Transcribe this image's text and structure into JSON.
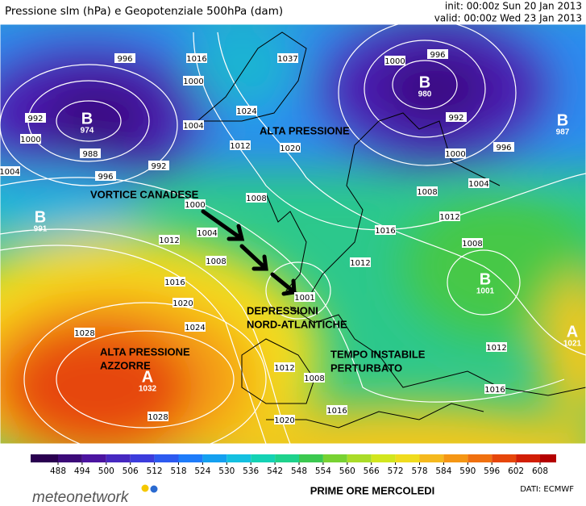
{
  "header": {
    "title": "Pressione slm (hPa) e Geopotenziale 500hPa (dam)",
    "init": "init: 00:00z Sun 20 Jan 2013",
    "valid": "valid: 00:00z Wed 23 Jan 2013"
  },
  "map": {
    "annotations": [
      [
        "ALTA PRESSIONE"
      ],
      [
        "VORTICE CANADESE"
      ],
      [
        "DEPRESSIONI",
        "NORD-ATLANTICHE"
      ],
      [
        "ALTA PRESSIONE",
        "AZZORRE"
      ],
      [
        "TEMPO INSTABILE",
        "PERTURBATO"
      ]
    ],
    "centers": [
      {
        "letter": "B",
        "value": "974"
      },
      {
        "letter": "B",
        "value": "991"
      },
      {
        "letter": "B",
        "value": "980"
      },
      {
        "letter": "B",
        "value": "987"
      },
      {
        "letter": "B",
        "value": "1001"
      },
      {
        "letter": "A",
        "value": "1032"
      },
      {
        "letter": "A",
        "value": "1021"
      }
    ],
    "isobar_labels": [
      "996",
      "1016",
      "1000",
      "1037",
      "1000",
      "996",
      "992",
      "988",
      "1000",
      "1004",
      "996",
      "992",
      "1004",
      "1024",
      "1012",
      "1020",
      "1008",
      "1000",
      "1004",
      "1012",
      "1008",
      "1016",
      "1020",
      "1024",
      "1028",
      "1028",
      "1012",
      "1008",
      "1020",
      "1016",
      "1016",
      "1012",
      "1008",
      "1012",
      "1004",
      "1000",
      "992",
      "996",
      "1008",
      "1016",
      "1012",
      "1001"
    ]
  },
  "colorbar": {
    "ticks": [
      488,
      494,
      500,
      506,
      512,
      518,
      524,
      530,
      536,
      542,
      548,
      554,
      560,
      566,
      572,
      578,
      584,
      590,
      596,
      602,
      608
    ],
    "colors": [
      "#2a0050",
      "#3c0a78",
      "#4b14a0",
      "#4628c0",
      "#3c3cdc",
      "#2d5af0",
      "#1e7cfa",
      "#14a0f0",
      "#14c0e0",
      "#14d2b4",
      "#1ed28c",
      "#3cc850",
      "#78d232",
      "#aadc28",
      "#d2e61e",
      "#f0dc1e",
      "#f5b91e",
      "#f59614",
      "#f0700f",
      "#e6460a",
      "#d21e05",
      "#b40000"
    ]
  },
  "footer": {
    "logo": "meteonetwork",
    "caption": "PRIME ORE MERCOLEDI",
    "source": "DATI:  ECMWF"
  }
}
